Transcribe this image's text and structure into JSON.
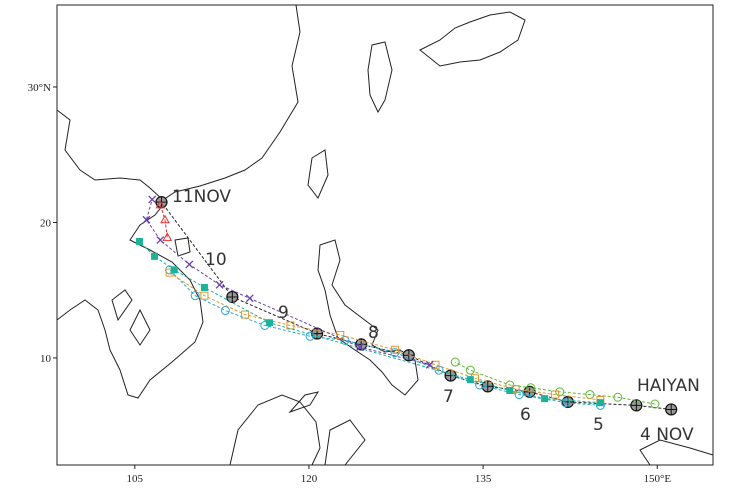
{
  "map": {
    "title": "HAIYAN",
    "xlim": [
      98.3,
      154.8
    ],
    "ylim": [
      2.1,
      36.05
    ],
    "xticks": [
      105,
      120,
      135,
      {
        "value": 150,
        "label": "150°E"
      }
    ],
    "yticks": [
      10,
      20,
      {
        "value": 30,
        "label": "30°N"
      }
    ],
    "annotations": [
      "4 NOV",
      "5",
      "6",
      "7",
      "8",
      "9",
      "10",
      "11NOV"
    ],
    "series": [
      {
        "marker": "circle-plus",
        "color": "#222222",
        "lon": [
          151.2,
          148.2,
          142.3,
          139.0,
          135.4,
          132.2,
          128.6,
          124.5,
          120.7,
          113.4,
          107.3
        ],
        "lat": [
          6.2,
          6.5,
          6.75,
          7.5,
          7.9,
          8.7,
          10.2,
          11.0,
          11.8,
          14.5,
          21.5
        ]
      },
      {
        "marker": "circle",
        "color": "#2aa8d8",
        "lon": [
          145.1,
          142.1,
          138.1,
          134.7,
          131.2,
          127.4,
          123.1,
          120.1,
          116.2,
          112.8,
          110.2,
          108.0
        ],
        "lat": [
          6.5,
          6.7,
          7.3,
          8.0,
          9.1,
          10.4,
          11.3,
          11.6,
          12.4,
          13.5,
          14.6,
          16.5
        ]
      },
      {
        "marker": "circle",
        "color": "#5cb832",
        "lon": [
          149.8,
          146.6,
          144.2,
          141.6,
          139.1,
          137.3,
          133.9,
          132.6
        ],
        "lat": [
          6.6,
          7.1,
          7.3,
          7.5,
          7.8,
          8.0,
          9.1,
          9.7
        ]
      },
      {
        "marker": "square",
        "color": "#e0962e",
        "lon": [
          145.1,
          141.2,
          137.8,
          134.3,
          130.9,
          127.4,
          122.7,
          118.4,
          114.5,
          111.0,
          108.0
        ],
        "lat": [
          6.9,
          7.3,
          7.7,
          8.5,
          9.5,
          10.6,
          11.7,
          12.4,
          13.2,
          14.6,
          16.3
        ]
      },
      {
        "marker": "filled-square",
        "color": "#1ab39a",
        "lon": [
          145.1,
          140.3,
          137.3,
          133.9,
          116.6,
          111.0,
          108.4,
          106.7,
          105.4
        ],
        "lat": [
          6.7,
          7.0,
          7.6,
          8.4,
          12.6,
          15.2,
          16.5,
          17.5,
          18.6
        ]
      },
      {
        "marker": "x",
        "color": "#6a3fb0",
        "lon": [
          130.4,
          124.4,
          114.9,
          112.3,
          109.7,
          107.2,
          106.0,
          106.5
        ],
        "lat": [
          9.5,
          10.8,
          14.4,
          15.4,
          16.9,
          18.7,
          20.2,
          21.7
        ]
      },
      {
        "marker": "triangle",
        "color": "#e03030",
        "lon": [
          107.8,
          107.6,
          107.2
        ],
        "lat": [
          18.9,
          20.2,
          21.3
        ]
      }
    ]
  }
}
